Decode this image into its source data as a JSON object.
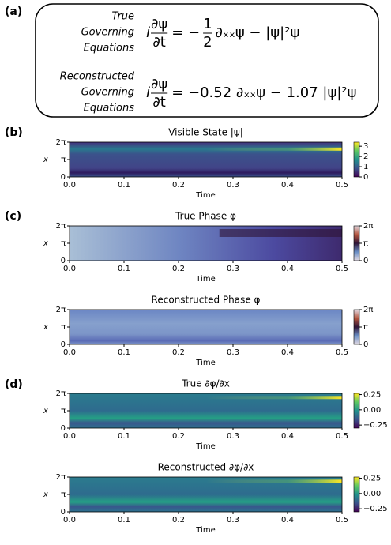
{
  "panel_labels": [
    "(a)",
    "(b)",
    "(c)",
    "(d)"
  ],
  "equations": [
    {
      "label": [
        "True",
        "Governing",
        "Equations"
      ],
      "prefix": "i",
      "numerator": "∂ψ",
      "denominator": "∂t",
      "rhs": [
        "= −",
        {
          "numerator": "1",
          "denominator": "2"
        },
        "∂ₓₓψ − |ψ|²ψ"
      ]
    },
    {
      "label": [
        "Reconstructed",
        "Governing",
        "Equations"
      ],
      "prefix": "i",
      "numerator": "∂ψ",
      "denominator": "∂t",
      "rhs": [
        "= −0.52 ∂ₓₓψ − 1.07 |ψ|²ψ"
      ]
    }
  ],
  "chart_data": [
    {
      "type": "heatmap",
      "title": "Visible State |ψ|",
      "xlabel": "Time",
      "ylabel": "x",
      "colormap": "viridis",
      "xlim": [
        0,
        0.5
      ],
      "xticks": [
        {
          "value": 0,
          "label": "0.0"
        },
        {
          "value": 0.1,
          "label": "0.1"
        },
        {
          "value": 0.2,
          "label": "0.2"
        },
        {
          "value": 0.3,
          "label": "0.3"
        },
        {
          "value": 0.4,
          "label": "0.4"
        },
        {
          "value": 0.5,
          "label": "0.5"
        }
      ],
      "ylim": [
        0,
        6.283185
      ],
      "yticks": [
        0,
        {
          "value": 3.141593,
          "label": "π"
        },
        {
          "value": 6.283185,
          "label": "2π"
        }
      ],
      "clim": [
        0,
        3.4
      ],
      "cticks": [
        0,
        1,
        2,
        3
      ]
    },
    {
      "type": "heatmap",
      "title": "True Phase φ",
      "xlabel": "Time",
      "ylabel": "x",
      "colormap": "twilight",
      "xlim": [
        0,
        0.5
      ],
      "xticks": [
        {
          "value": 0,
          "label": "0.0"
        },
        {
          "value": 0.1,
          "label": "0.1"
        },
        {
          "value": 0.2,
          "label": "0.2"
        },
        {
          "value": 0.3,
          "label": "0.3"
        },
        {
          "value": 0.4,
          "label": "0.4"
        },
        {
          "value": 0.5,
          "label": "0.5"
        }
      ],
      "ylim": [
        0,
        6.283185
      ],
      "yticks": [
        0,
        {
          "value": 3.141593,
          "label": "π"
        },
        {
          "value": 6.283185,
          "label": "2π"
        }
      ],
      "clim": [
        0,
        6.283185
      ],
      "cticks": [
        0,
        {
          "value": 3.141593,
          "label": "π"
        },
        {
          "value": 6.283185,
          "label": "2π"
        }
      ]
    },
    {
      "type": "heatmap",
      "title": "Reconstructed Phase φ",
      "xlabel": "Time",
      "ylabel": "x",
      "colormap": "twilight",
      "xlim": [
        0,
        0.5
      ],
      "xticks": [
        {
          "value": 0,
          "label": "0.0"
        },
        {
          "value": 0.1,
          "label": "0.1"
        },
        {
          "value": 0.2,
          "label": "0.2"
        },
        {
          "value": 0.3,
          "label": "0.3"
        },
        {
          "value": 0.4,
          "label": "0.4"
        },
        {
          "value": 0.5,
          "label": "0.5"
        }
      ],
      "ylim": [
        0,
        6.283185
      ],
      "yticks": [
        0,
        {
          "value": 3.141593,
          "label": "π"
        },
        {
          "value": 6.283185,
          "label": "2π"
        }
      ],
      "clim": [
        0,
        6.283185
      ],
      "cticks": [
        0,
        {
          "value": 3.141593,
          "label": "π"
        },
        {
          "value": 6.283185,
          "label": "2π"
        }
      ]
    },
    {
      "type": "heatmap",
      "title": "True ∂φ/∂x",
      "xlabel": "Time",
      "ylabel": "x",
      "colormap": "viridis",
      "xlim": [
        0,
        0.5
      ],
      "xticks": [
        {
          "value": 0,
          "label": "0.0"
        },
        {
          "value": 0.1,
          "label": "0.1"
        },
        {
          "value": 0.2,
          "label": "0.2"
        },
        {
          "value": 0.3,
          "label": "0.3"
        },
        {
          "value": 0.4,
          "label": "0.4"
        },
        {
          "value": 0.5,
          "label": "0.5"
        }
      ],
      "ylim": [
        0,
        6.283185
      ],
      "yticks": [
        0,
        {
          "value": 3.141593,
          "label": "π"
        },
        {
          "value": 6.283185,
          "label": "2π"
        }
      ],
      "clim": [
        -0.3,
        0.27
      ],
      "cticks": [
        0.25,
        {
          "value": 0,
          "label": "0.00"
        },
        {
          "value": -0.25,
          "label": "−0.25"
        }
      ]
    },
    {
      "type": "heatmap",
      "title": "Reconstructed ∂φ/∂x",
      "xlabel": "Time",
      "ylabel": "x",
      "colormap": "viridis",
      "xlim": [
        0,
        0.5
      ],
      "xticks": [
        {
          "value": 0,
          "label": "0.0"
        },
        {
          "value": 0.1,
          "label": "0.1"
        },
        {
          "value": 0.2,
          "label": "0.2"
        },
        {
          "value": 0.3,
          "label": "0.3"
        },
        {
          "value": 0.4,
          "label": "0.4"
        },
        {
          "value": 0.5,
          "label": "0.5"
        }
      ],
      "ylim": [
        0,
        6.283185
      ],
      "yticks": [
        0,
        {
          "value": 3.141593,
          "label": "π"
        },
        {
          "value": 6.283185,
          "label": "2π"
        }
      ],
      "clim": [
        -0.3,
        0.27
      ],
      "cticks": [
        0.25,
        {
          "value": 0,
          "label": "0.00"
        },
        {
          "value": -0.25,
          "label": "−0.25"
        }
      ]
    }
  ]
}
